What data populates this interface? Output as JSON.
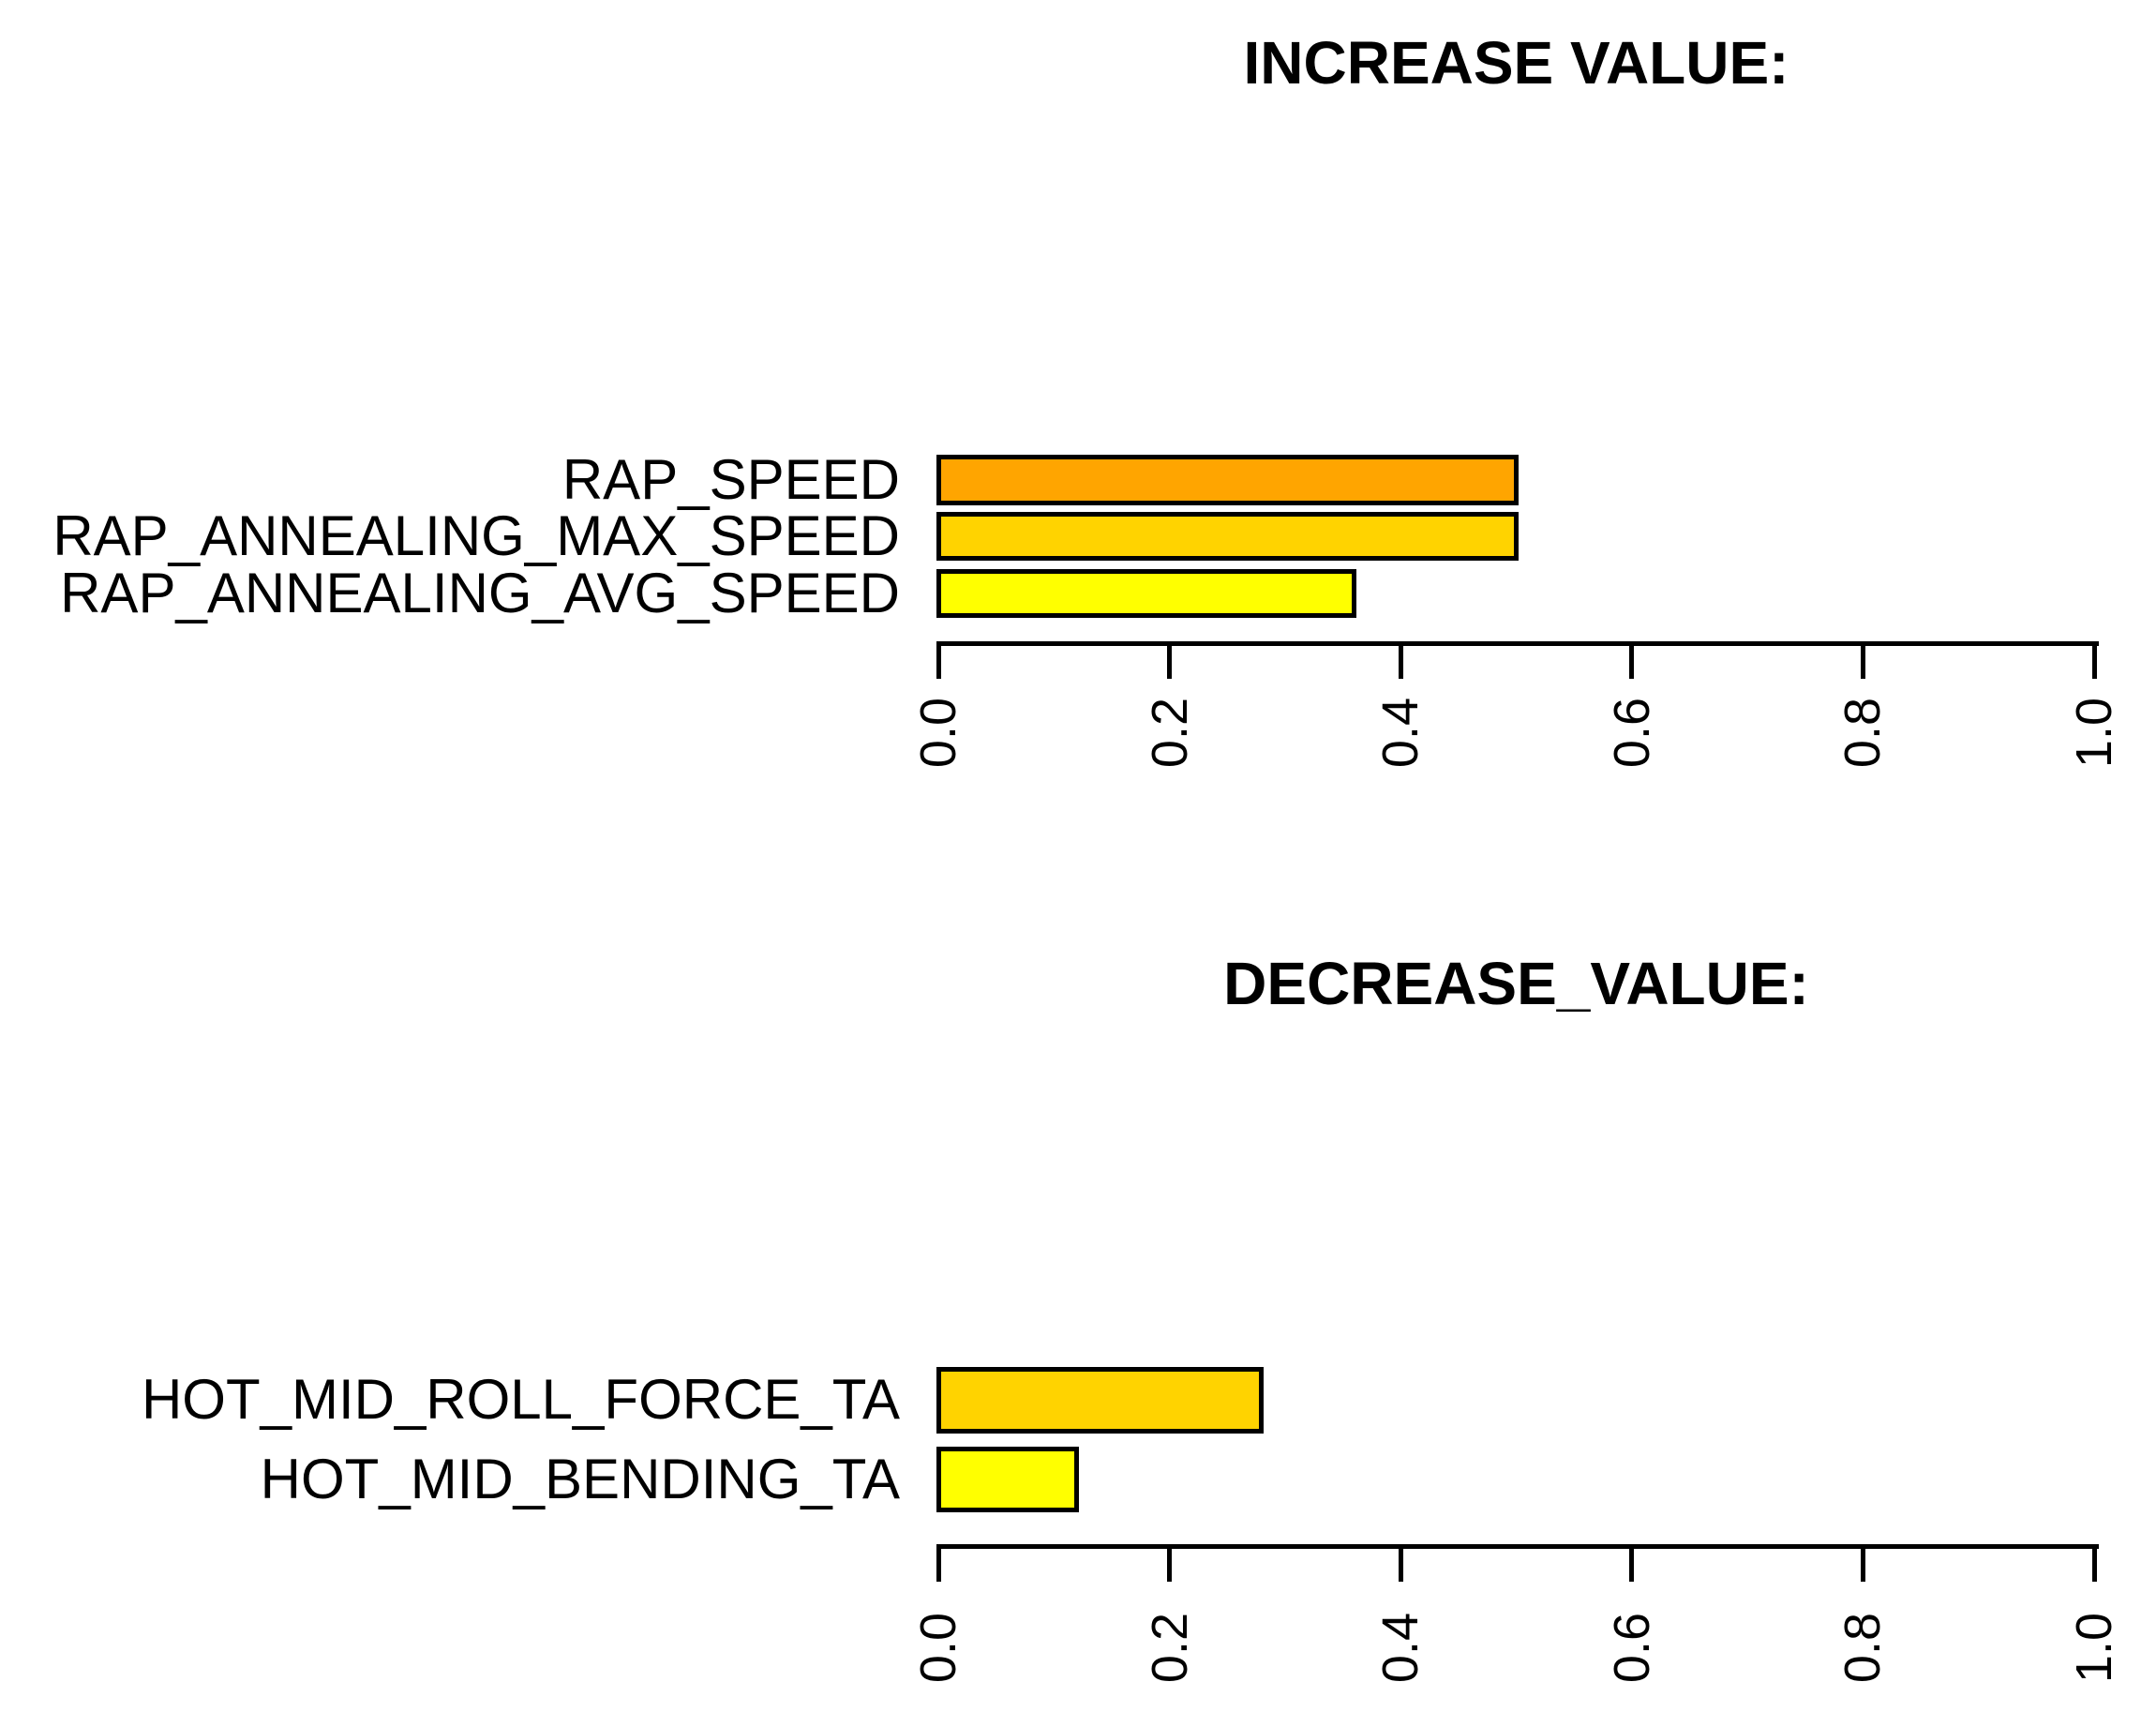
{
  "figure": {
    "background": "#FFFFFF",
    "text_color": "#000000",
    "bar_border_color": "#000000"
  },
  "chart_data": [
    {
      "type": "bar",
      "orientation": "horizontal",
      "title": "INCREASE VALUE:",
      "categories": [
        "RAP_SPEED",
        "RAP_ANNEALING_MAX_SPEED",
        "RAP_ANNEALING_AVG_SPEED"
      ],
      "values": [
        0.5,
        0.5,
        0.36
      ],
      "bar_colors": [
        "#FFA500",
        "#FFD300",
        "#FFFF00"
      ],
      "xlabel": "",
      "ylabel": "",
      "xlim": [
        0.0,
        1.0
      ],
      "x_tick_values": [
        0.0,
        0.2,
        0.4,
        0.6,
        0.8,
        1.0
      ],
      "x_tick_labels": [
        "0.0",
        "0.2",
        "0.4",
        "0.6",
        "0.8",
        "1.0"
      ],
      "tick_label_rotation_deg": -90,
      "grid": false,
      "legend": "none"
    },
    {
      "type": "bar",
      "orientation": "horizontal",
      "title": "DECREASE_VALUE:",
      "categories": [
        "HOT_MID_ROLL_FORCE_TA",
        "HOT_MID_BENDING_TA"
      ],
      "values": [
        0.28,
        0.12
      ],
      "bar_colors": [
        "#FFD300",
        "#FFFF00"
      ],
      "xlabel": "",
      "ylabel": "",
      "xlim": [
        0.0,
        1.0
      ],
      "x_tick_values": [
        0.0,
        0.2,
        0.4,
        0.6,
        0.8,
        1.0
      ],
      "x_tick_labels": [
        "0.0",
        "0.2",
        "0.4",
        "0.6",
        "0.8",
        "1.0"
      ],
      "tick_label_rotation_deg": -90,
      "grid": false,
      "legend": "none"
    }
  ]
}
